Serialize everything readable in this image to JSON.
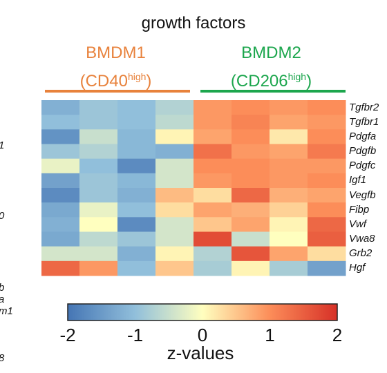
{
  "chart_data": {
    "type": "heatmap",
    "title": "growth factors",
    "groups": [
      {
        "name": "BMDM1",
        "marker": "CD40",
        "marker_sup": "high",
        "color": "#E8823C"
      },
      {
        "name": "BMDM2",
        "marker": "CD206",
        "marker_sup": "high",
        "color": "#1CA64D"
      }
    ],
    "rows": [
      "Tgfbr2",
      "Tgfbr1",
      "Pdgfa",
      "Pdgfb",
      "Pdgfc",
      "Igf1",
      "Vegfb",
      "Fibp",
      "Vwf",
      "Vwa8",
      "Grb2",
      "Hgf"
    ],
    "values": [
      [
        -1.2,
        -0.9,
        -1.0,
        -0.7,
        0.9,
        1.0,
        0.9,
        1.0
      ],
      [
        -1.0,
        -0.9,
        -1.0,
        -0.6,
        0.9,
        1.1,
        0.8,
        0.9
      ],
      [
        -1.6,
        -0.5,
        -1.1,
        0.1,
        0.8,
        1.0,
        0.2,
        1.0
      ],
      [
        -0.9,
        -0.7,
        -1.1,
        -1.2,
        1.3,
        0.9,
        0.8,
        1.2
      ],
      [
        -0.2,
        -1.0,
        -1.7,
        -0.4,
        1.0,
        1.0,
        0.9,
        0.9
      ],
      [
        -1.4,
        -0.9,
        -1.1,
        -0.4,
        0.9,
        1.0,
        0.9,
        1.0
      ],
      [
        -1.7,
        -0.9,
        -1.2,
        0.6,
        0.3,
        1.4,
        0.7,
        0.8
      ],
      [
        -1.3,
        -0.2,
        -1.0,
        0.3,
        0.8,
        0.7,
        0.4,
        1.0
      ],
      [
        -1.2,
        0.0,
        -1.7,
        -0.4,
        0.5,
        0.8,
        0.1,
        1.4
      ],
      [
        -1.3,
        -0.6,
        -0.9,
        -0.4,
        1.7,
        -0.5,
        0.0,
        1.5
      ],
      [
        -0.4,
        -0.4,
        -1.2,
        0.1,
        -0.7,
        1.6,
        0.8,
        0.3
      ],
      [
        1.4,
        0.9,
        -1.0,
        0.5,
        -0.8,
        0.1,
        -0.8,
        -1.4
      ]
    ],
    "colorbar": {
      "label": "z-values",
      "range": [
        -2,
        2
      ],
      "ticks": [
        "-2",
        "-1",
        "0",
        "1",
        "2"
      ]
    }
  },
  "side_fragments": [
    "1",
    "0",
    "b",
    "a",
    "m1",
    "8"
  ]
}
